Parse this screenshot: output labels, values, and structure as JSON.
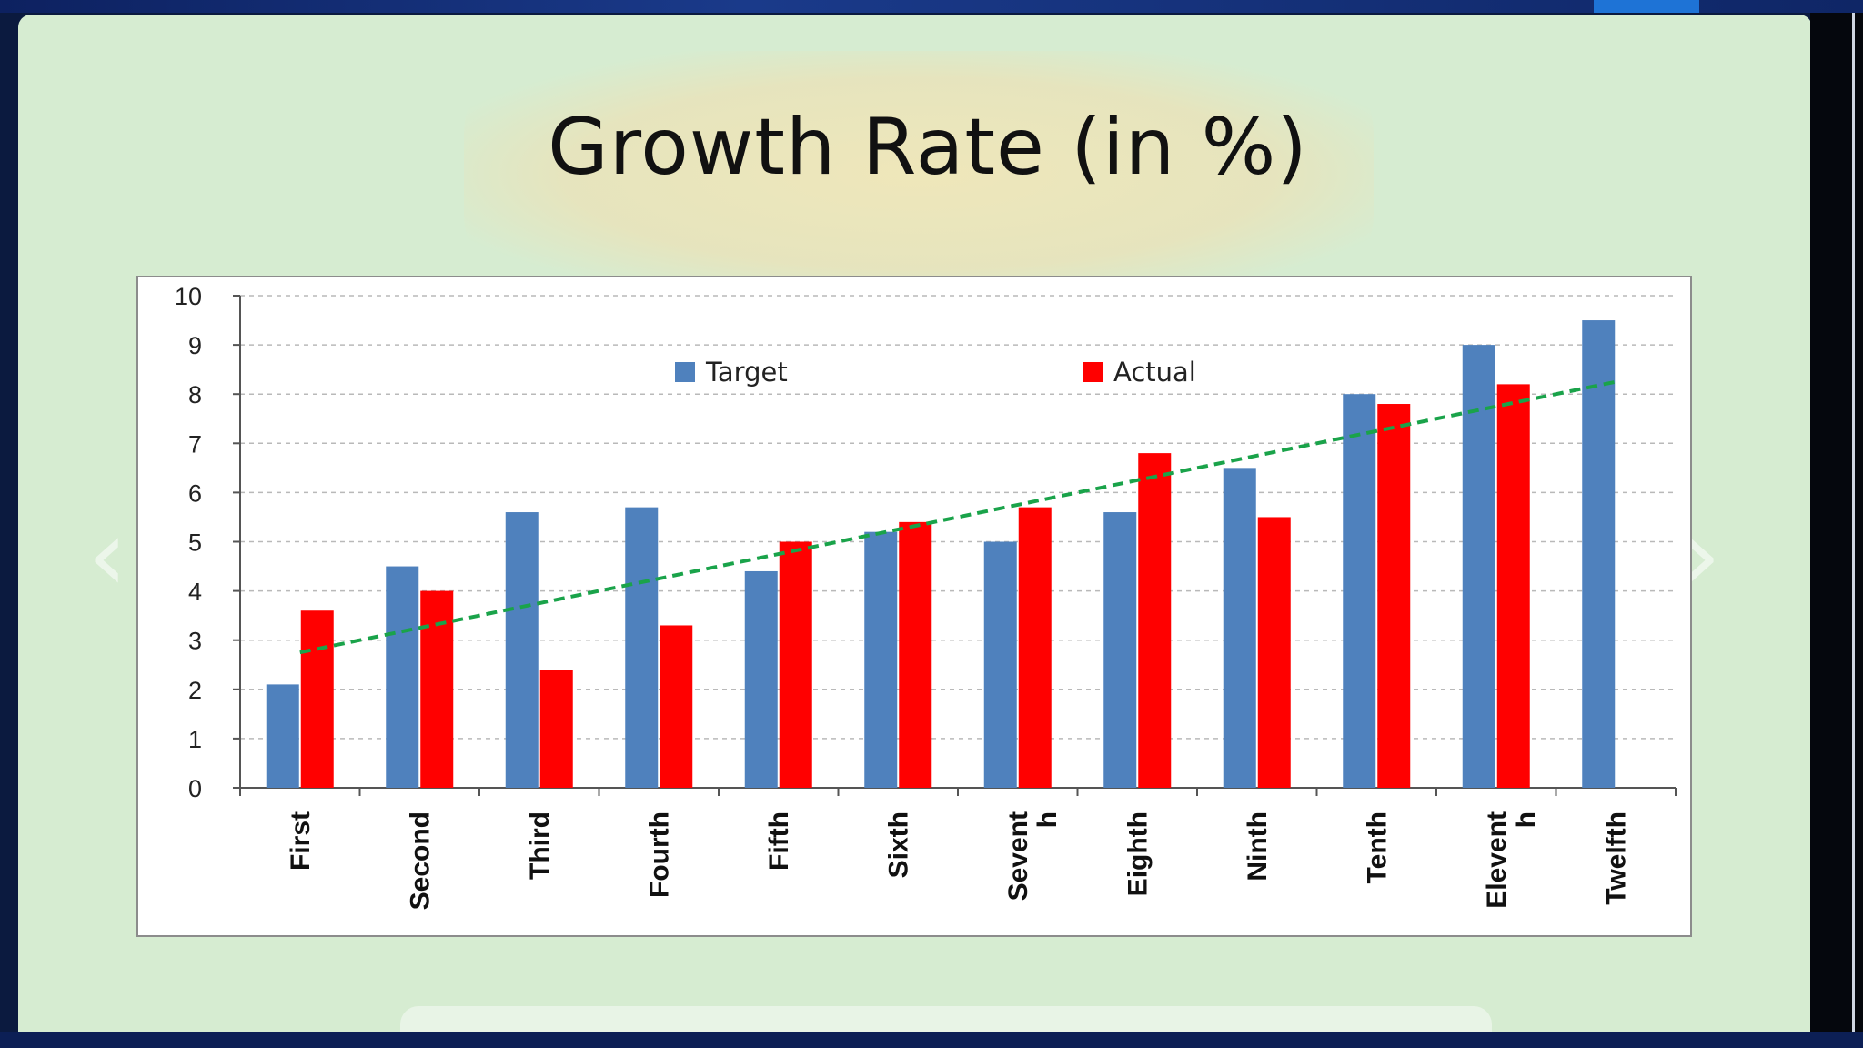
{
  "slide": {
    "title": "Growth Rate (in %)"
  },
  "colors": {
    "target": "#4f81bd",
    "actual": "#ff0000",
    "trend": "#1aa34a"
  },
  "chart_data": {
    "type": "bar",
    "title": "Growth Rate (in %)",
    "xlabel": "",
    "ylabel": "",
    "ylim": [
      0,
      10
    ],
    "yticks": [
      0,
      1,
      2,
      3,
      4,
      5,
      6,
      7,
      8,
      9,
      10
    ],
    "grid": true,
    "legend_position": "top-center",
    "categories": [
      [
        "First"
      ],
      [
        "Second"
      ],
      [
        "Third"
      ],
      [
        "Fourth"
      ],
      [
        "Fifth"
      ],
      [
        "Sixth"
      ],
      [
        "Sevent",
        "h"
      ],
      [
        "Eighth"
      ],
      [
        "Ninth"
      ],
      [
        "Tenth"
      ],
      [
        "Elevent",
        "h"
      ],
      [
        "Twelfth"
      ]
    ],
    "series": [
      {
        "name": "Target",
        "values": [
          2.1,
          4.5,
          5.6,
          5.7,
          4.4,
          5.2,
          5.0,
          5.6,
          6.5,
          8.0,
          9.0,
          9.5
        ]
      },
      {
        "name": "Actual",
        "values": [
          3.6,
          4.0,
          2.4,
          3.3,
          5.0,
          5.4,
          5.7,
          6.8,
          5.5,
          7.8,
          8.2,
          null
        ]
      }
    ],
    "trendline": {
      "series": "Actual",
      "style": "dashed",
      "start": 2.75,
      "end": 8.25
    }
  }
}
